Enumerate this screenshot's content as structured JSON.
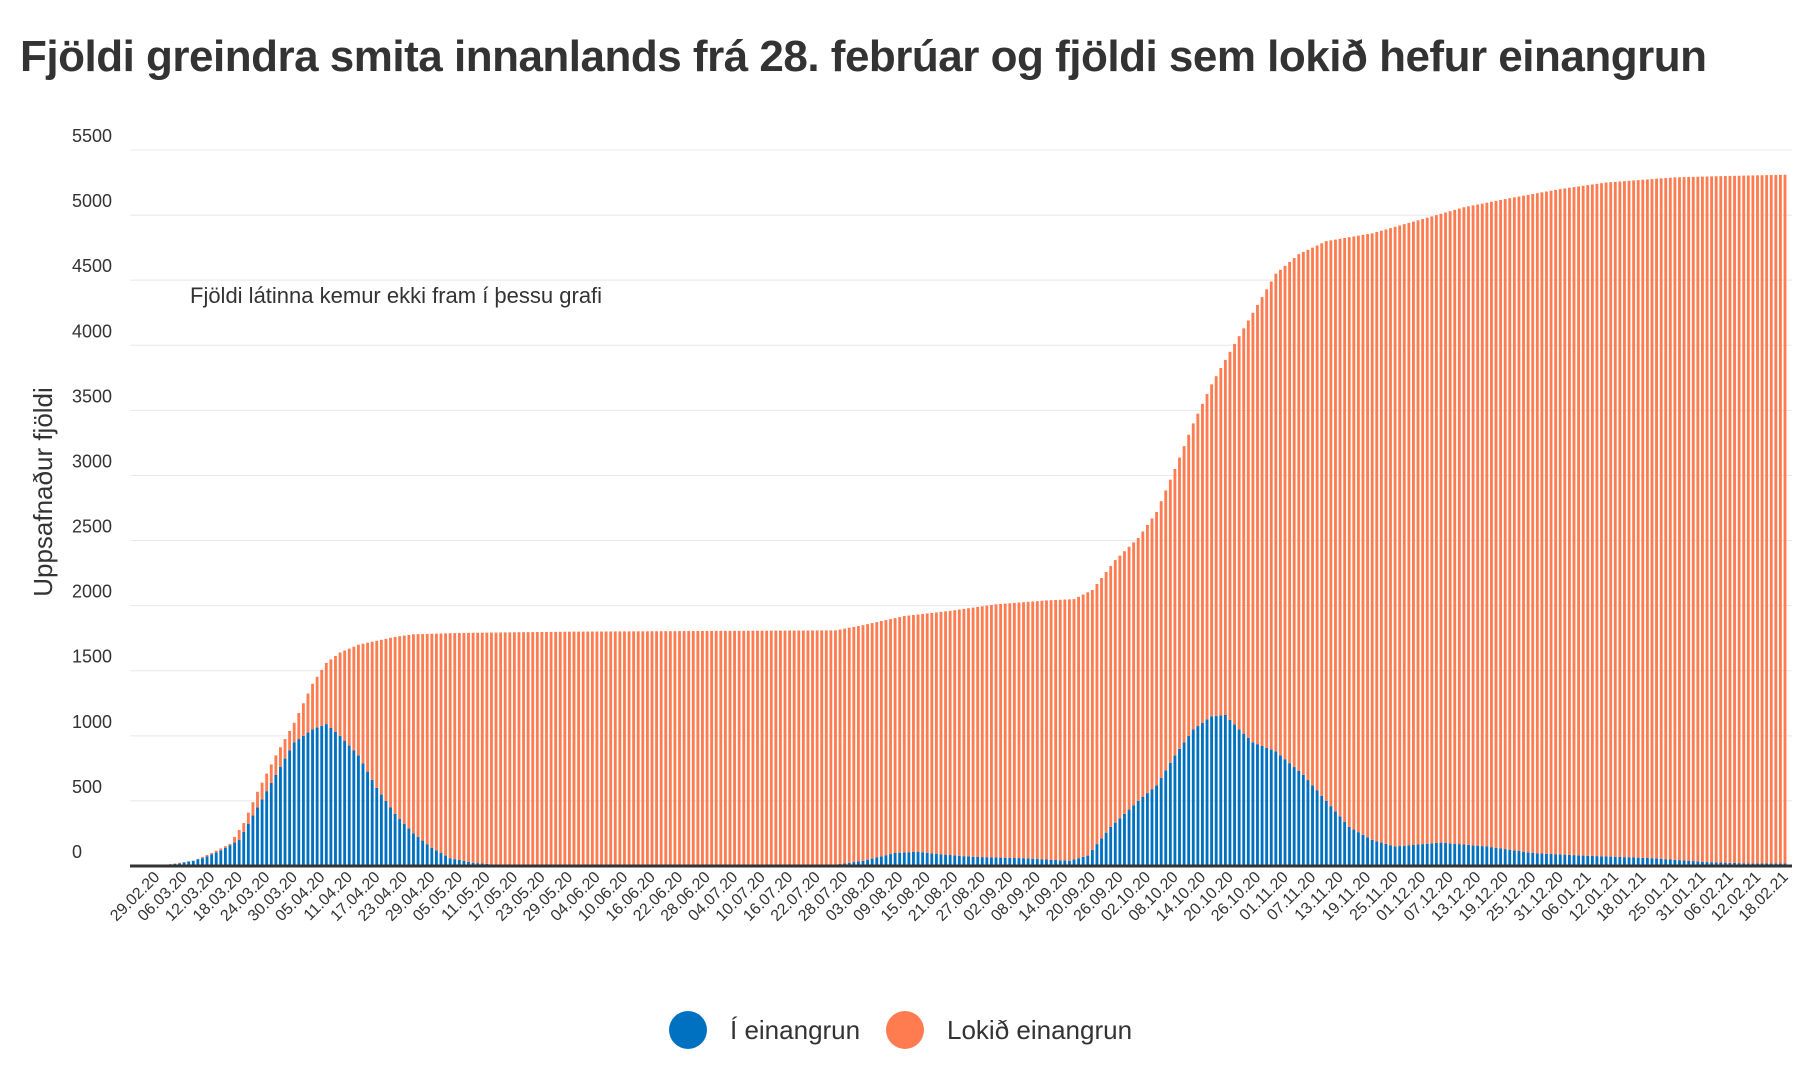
{
  "chart_data": {
    "type": "bar",
    "stacked": true,
    "title": "Fjöldi greindra smita innanlands frá 28. febrúar og fjöldi sem lokið hefur einangrun",
    "ylabel": "Uppsafnaður fjöldi",
    "xlabel": "",
    "annotation": "Fjöldi látinna kemur ekki fram í þessu grafi",
    "ylim": [
      0,
      5500
    ],
    "yticks": [
      0,
      500,
      1000,
      1500,
      2000,
      2500,
      3000,
      3500,
      4000,
      4500,
      5000,
      5500
    ],
    "grid": true,
    "legend_position": "bottom",
    "x_range": [
      "28.02.20",
      "18.02.21"
    ],
    "x_ticks": [
      "29.02.20",
      "06.03.20",
      "12.03.20",
      "18.03.20",
      "24.03.20",
      "30.03.20",
      "05.04.20",
      "11.04.20",
      "17.04.20",
      "23.04.20",
      "29.04.20",
      "05.05.20",
      "11.05.20",
      "17.05.20",
      "23.05.20",
      "29.05.20",
      "04.06.20",
      "10.06.20",
      "16.06.20",
      "22.06.20",
      "28.06.20",
      "04.07.20",
      "10.07.20",
      "16.07.20",
      "22.07.20",
      "28.07.20",
      "03.08.20",
      "09.08.20",
      "15.08.20",
      "21.08.20",
      "27.08.20",
      "02.09.20",
      "08.09.20",
      "14.09.20",
      "20.09.20",
      "26.09.20",
      "02.10.20",
      "08.10.20",
      "14.10.20",
      "20.10.20",
      "26.10.20",
      "01.11.20",
      "07.11.20",
      "13.11.20",
      "19.11.20",
      "25.11.20",
      "01.12.20",
      "07.12.20",
      "13.12.20",
      "19.12.20",
      "25.12.20",
      "31.12.20",
      "06.01.21",
      "12.01.21",
      "18.01.21",
      "25.01.21",
      "31.01.21",
      "06.02.21",
      "12.02.21",
      "18.02.21"
    ],
    "series": [
      {
        "name": "Í einangrun",
        "color": "#0070c0",
        "keyframes": [
          [
            "28.02.20",
            0
          ],
          [
            "05.03.20",
            20
          ],
          [
            "10.03.20",
            60
          ],
          [
            "14.03.20",
            120
          ],
          [
            "18.03.20",
            200
          ],
          [
            "22.03.20",
            450
          ],
          [
            "26.03.20",
            700
          ],
          [
            "30.03.20",
            950
          ],
          [
            "03.04.20",
            1050
          ],
          [
            "06.04.20",
            1090
          ],
          [
            "09.04.20",
            1000
          ],
          [
            "13.04.20",
            850
          ],
          [
            "17.04.20",
            600
          ],
          [
            "21.04.20",
            400
          ],
          [
            "25.04.20",
            250
          ],
          [
            "29.04.20",
            140
          ],
          [
            "03.05.20",
            60
          ],
          [
            "08.05.20",
            25
          ],
          [
            "15.05.20",
            5
          ],
          [
            "25.07.20",
            5
          ],
          [
            "01.08.20",
            40
          ],
          [
            "08.08.20",
            100
          ],
          [
            "13.08.20",
            110
          ],
          [
            "18.08.20",
            90
          ],
          [
            "25.08.20",
            70
          ],
          [
            "05.09.20",
            60
          ],
          [
            "15.09.20",
            40
          ],
          [
            "19.09.20",
            80
          ],
          [
            "24.09.20",
            300
          ],
          [
            "30.09.20",
            500
          ],
          [
            "04.10.20",
            620
          ],
          [
            "08.10.20",
            850
          ],
          [
            "12.10.20",
            1050
          ],
          [
            "16.10.20",
            1150
          ],
          [
            "19.10.20",
            1160
          ],
          [
            "22.10.20",
            1050
          ],
          [
            "25.10.20",
            950
          ],
          [
            "30.10.20",
            880
          ],
          [
            "05.11.20",
            700
          ],
          [
            "10.11.20",
            500
          ],
          [
            "15.11.20",
            300
          ],
          [
            "20.11.20",
            200
          ],
          [
            "25.11.20",
            150
          ],
          [
            "05.12.20",
            180
          ],
          [
            "15.12.20",
            150
          ],
          [
            "25.12.20",
            100
          ],
          [
            "05.01.21",
            80
          ],
          [
            "20.01.21",
            60
          ],
          [
            "01.02.21",
            30
          ],
          [
            "10.02.21",
            20
          ],
          [
            "18.02.21",
            20
          ]
        ]
      },
      {
        "name": "Lokið einangrun",
        "color": "#ff7c50",
        "total_keyframes": [
          [
            "28.02.20",
            0
          ],
          [
            "04.03.20",
            20
          ],
          [
            "08.03.20",
            40
          ],
          [
            "12.03.20",
            100
          ],
          [
            "16.03.20",
            170
          ],
          [
            "19.03.20",
            330
          ],
          [
            "22.03.20",
            570
          ],
          [
            "26.03.20",
            850
          ],
          [
            "30.03.20",
            1100
          ],
          [
            "03.04.20",
            1400
          ],
          [
            "06.04.20",
            1560
          ],
          [
            "09.04.20",
            1640
          ],
          [
            "13.04.20",
            1700
          ],
          [
            "17.04.20",
            1730
          ],
          [
            "21.04.20",
            1760
          ],
          [
            "25.04.20",
            1780
          ],
          [
            "05.05.20",
            1790
          ],
          [
            "29.05.20",
            1800
          ],
          [
            "26.07.20",
            1810
          ],
          [
            "01.08.20",
            1850
          ],
          [
            "10.08.20",
            1920
          ],
          [
            "20.08.20",
            1960
          ],
          [
            "30.08.20",
            2010
          ],
          [
            "10.09.20",
            2040
          ],
          [
            "16.09.20",
            2050
          ],
          [
            "20.09.20",
            2120
          ],
          [
            "25.09.20",
            2350
          ],
          [
            "30.09.20",
            2520
          ],
          [
            "04.10.20",
            2720
          ],
          [
            "08.10.20",
            3050
          ],
          [
            "12.10.20",
            3400
          ],
          [
            "16.10.20",
            3700
          ],
          [
            "20.10.20",
            3950
          ],
          [
            "25.10.20",
            4250
          ],
          [
            "30.10.20",
            4550
          ],
          [
            "04.11.20",
            4700
          ],
          [
            "10.11.20",
            4800
          ],
          [
            "20.11.20",
            4860
          ],
          [
            "30.11.20",
            4960
          ],
          [
            "10.12.20",
            5060
          ],
          [
            "20.12.20",
            5130
          ],
          [
            "31.12.20",
            5200
          ],
          [
            "10.01.21",
            5250
          ],
          [
            "25.01.21",
            5290
          ],
          [
            "05.02.21",
            5300
          ],
          [
            "18.02.21",
            5310
          ]
        ]
      }
    ]
  }
}
